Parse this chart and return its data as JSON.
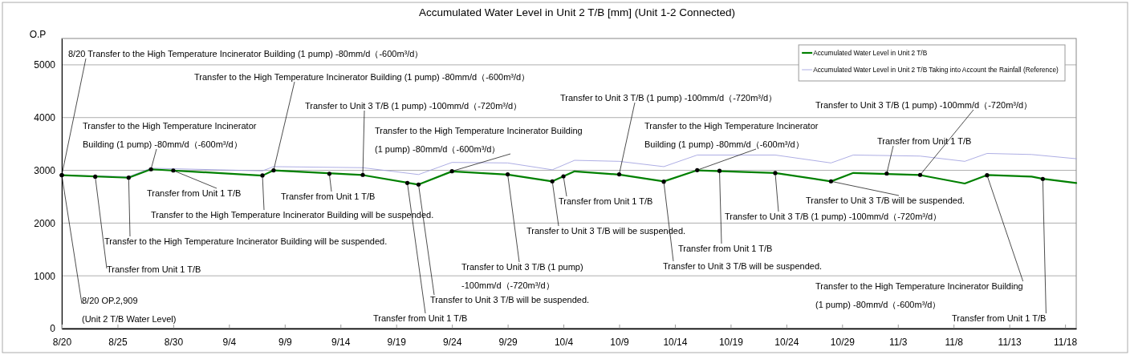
{
  "chart_data": {
    "type": "line",
    "title": "Accumulated Water Level in Unit 2 T/B [mm] (Unit 1-2 Connected)",
    "ylabel": "O.P",
    "xlim": [
      "--08-20",
      "--11-19"
    ],
    "xticks": [
      {
        "value": "--08-20",
        "label": "8/20"
      },
      {
        "value": "--08-25",
        "label": "8/25"
      },
      {
        "value": "--08-30",
        "label": "8/30"
      },
      {
        "value": "--09-04",
        "label": "9/4"
      },
      {
        "value": "--09-09",
        "label": "9/9"
      },
      {
        "value": "--09-14",
        "label": "9/14"
      },
      {
        "value": "--09-19",
        "label": "9/19"
      },
      {
        "value": "--09-24",
        "label": "9/24"
      },
      {
        "value": "--09-29",
        "label": "9/29"
      },
      {
        "value": "--10-04",
        "label": "10/4"
      },
      {
        "value": "--10-09",
        "label": "10/9"
      },
      {
        "value": "--10-14",
        "label": "10/14"
      },
      {
        "value": "--10-19",
        "label": "10/19"
      },
      {
        "value": "--10-24",
        "label": "10/24"
      },
      {
        "value": "--10-29",
        "label": "10/29"
      },
      {
        "value": "--11-03",
        "label": "11/3"
      },
      {
        "value": "--11-08",
        "label": "11/8"
      },
      {
        "value": "--11-13",
        "label": "11/13"
      },
      {
        "value": "--11-18",
        "label": "11/18"
      }
    ],
    "ylim": [
      0,
      5500
    ],
    "yticks": [
      0,
      1000,
      2000,
      3000,
      4000,
      5000
    ],
    "grid": "y",
    "legend": "top right",
    "marker": "none",
    "line_style": "solid",
    "series": [
      {
        "name": "Accumulated Water Level in Unit 2 T/B",
        "color": "#008000",
        "x": [
          "--08-20",
          "--08-26",
          "--08-28",
          "--09-07",
          "--09-08",
          "--09-16",
          "--09-21",
          "--09-24",
          "--09-29",
          "--10-03",
          "--10-05",
          "--10-09",
          "--10-13",
          "--10-16",
          "--10-23",
          "--10-28",
          "--10-30",
          "--11-05",
          "--11-09",
          "--11-11",
          "--11-15",
          "--11-16",
          "--11-19"
        ],
        "values": [
          2909,
          2860,
          3020,
          2900,
          3000,
          2910,
          2730,
          2980,
          2920,
          2790,
          2980,
          2920,
          2790,
          3000,
          2950,
          2790,
          2950,
          2910,
          2750,
          2910,
          2880,
          2840,
          2760
        ]
      },
      {
        "name": "Accumulated Water Level in Unit 2 T/B Taking into Account the Rainfall (Reference)",
        "color": "#9999dd",
        "x": [
          "--08-20",
          "--08-26",
          "--08-28",
          "--09-07",
          "--09-08",
          "--09-16",
          "--09-21",
          "--09-24",
          "--09-29",
          "--10-03",
          "--10-05",
          "--10-09",
          "--10-13",
          "--10-16",
          "--10-23",
          "--10-28",
          "--10-30",
          "--11-05",
          "--11-09",
          "--11-11",
          "--11-15",
          "--11-19"
        ],
        "values": [
          2909,
          2880,
          3040,
          2990,
          3070,
          3050,
          2920,
          3150,
          3140,
          3010,
          3190,
          3170,
          3070,
          3290,
          3290,
          3140,
          3290,
          3270,
          3170,
          3320,
          3300,
          3220
        ]
      }
    ],
    "annotations": [
      {
        "text": "8/20  Transfer to the High Temperature Incinerator Building (1 pump)  -80mm/d（-600m³/d）",
        "x": "--08-20",
        "y": 2909
      },
      {
        "text": "Transfer to the High Temperature Incinerator Building (1 pump)  -80mm/d（-600m³/d）",
        "x": "--09-08",
        "y": 3000
      },
      {
        "text": "Transfer to Unit 3 T/B (1 pump) -100mm/d（-720m³/d）",
        "x": "--09-16",
        "y": 2913
      },
      {
        "text": "Transfer to Unit 3 T/B (1 pump) -100mm/d（-720m³/d）",
        "x": "--10-09",
        "y": 2923
      },
      {
        "text": "Transfer to Unit 3 T/B (1 pump) -100mm/d（-720m³/d）",
        "x": "--11-05",
        "y": 2913
      },
      {
        "text": "Transfer to the High Temperature Incinerator\nBuilding (1 pump)  -80mm/d（-600m³/d）",
        "x": "--08-28",
        "y": 3020
      },
      {
        "text": "Transfer to the High Temperature Incinerator Building\n(1 pump)  -80mm/d（-600m³/d）",
        "x": "--09-24",
        "y": 2983
      },
      {
        "text": "Transfer to the High Temperature Incinerator\nBuilding (1 pump)  -80mm/d（-600m³/d）",
        "x": "--10-16",
        "y": 3004
      },
      {
        "text": "Transfer from Unit 1 T/B",
        "x": "--11-02",
        "y": 2940
      },
      {
        "text": "Transfer from Unit 1 T/B",
        "x": "--08-30",
        "y": 2997
      },
      {
        "text": "Transfer from Unit 1 T/B",
        "x": "--09-13",
        "y": 2935
      },
      {
        "text": "Transfer to the High Temperature Incinerator Building will be suspended.",
        "x": "--09-07",
        "y": 2903
      },
      {
        "text": "Transfer to the High Temperature Incinerator Building will be suspended.",
        "x": "--08-26",
        "y": 2862
      },
      {
        "text": "Transfer from Unit 1 T/B",
        "x": "--08-23",
        "y": 2880
      },
      {
        "text": "8/20   OP.2,909\n(Unit 2 T/B Water Level)",
        "x": "--08-20",
        "y": 2909
      },
      {
        "text": "Transfer from Unit 1 T/B",
        "x": "--09-20",
        "y": 2760
      },
      {
        "text": "Transfer to Unit 3 T/B will be suspended.",
        "x": "--09-21",
        "y": 2731
      },
      {
        "text": "Transfer to Unit 3 T/B (1 pump)\n-100mm/d（-720m³/d）",
        "x": "--09-29",
        "y": 2923
      },
      {
        "text": "Transfer to Unit 3 T/B will be suspended.",
        "x": "--10-03",
        "y": 2792
      },
      {
        "text": "Transfer from Unit 1 T/B",
        "x": "--10-04",
        "y": 2887
      },
      {
        "text": "Transfer from Unit 1 T/B",
        "x": "--10-18",
        "y": 2990
      },
      {
        "text": "Transfer to Unit 3 T/B will be suspended.",
        "x": "--10-13",
        "y": 2786
      },
      {
        "text": "Transfer to Unit 3 T/B (1 pump) -100mm/d（-720m³/d）",
        "x": "--10-23",
        "y": 2948
      },
      {
        "text": "Transfer to Unit 3 T/B will be suspended.",
        "x": "--10-28",
        "y": 2792
      },
      {
        "text": "Transfer to the High Temperature Incinerator Building\n(1 pump)  -80mm/d（-600m³/d）",
        "x": "--11-11",
        "y": 2907
      },
      {
        "text": "Transfer from Unit 1 T/B",
        "x": "--11-16",
        "y": 2837
      }
    ]
  }
}
